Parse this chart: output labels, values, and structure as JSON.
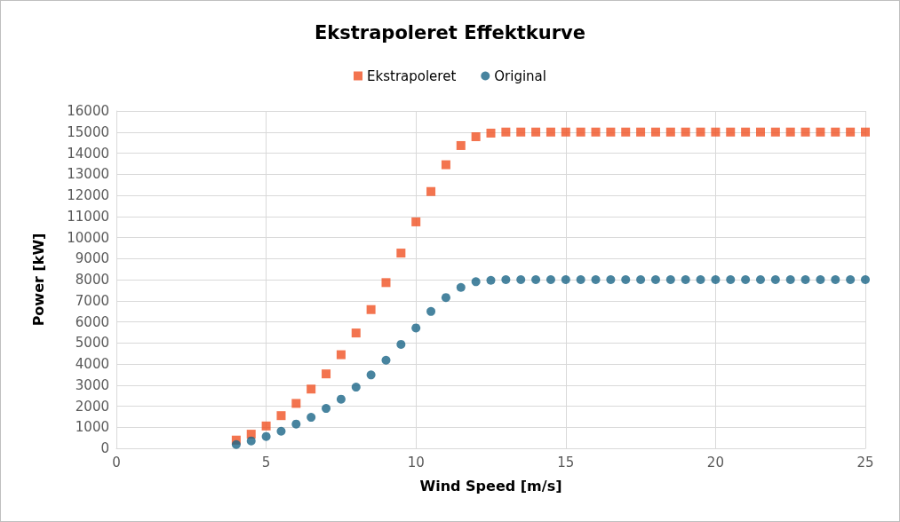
{
  "chart_data": {
    "type": "scatter",
    "title": "Ekstrapoleret Effektkurve",
    "xlabel": "Wind Speed [m/s]",
    "ylabel": "Power [kW]",
    "x": [
      4,
      4.5,
      5,
      5.5,
      6,
      6.5,
      7,
      7.5,
      8,
      8.5,
      9,
      9.5,
      10,
      10.5,
      11,
      11.5,
      12,
      12.5,
      13,
      13.5,
      14,
      14.5,
      15,
      15.5,
      16,
      16.5,
      17,
      17.5,
      18,
      18.5,
      19,
      19.5,
      20,
      20.5,
      21,
      21.5,
      22,
      22.5,
      23,
      23.5,
      24,
      24.5,
      25
    ],
    "series": [
      {
        "name": "Ekstrapoleret",
        "color": "#f05123",
        "marker": "square",
        "values": [
          390,
          670,
          1060,
          1550,
          2130,
          2810,
          3530,
          4440,
          5470,
          6580,
          7860,
          9260,
          10740,
          12180,
          13450,
          14360,
          14780,
          14950,
          15000,
          15000,
          15000,
          15000,
          15000,
          15000,
          15000,
          15000,
          15000,
          15000,
          15000,
          15000,
          15000,
          15000,
          15000,
          15000,
          15000,
          15000,
          15000,
          15000,
          15000,
          15000,
          15000,
          15000,
          15000
        ]
      },
      {
        "name": "Original",
        "color": "#1a6587",
        "marker": "circle",
        "values": [
          180,
          350,
          560,
          810,
          1150,
          1470,
          1890,
          2330,
          2900,
          3480,
          4180,
          4930,
          5710,
          6490,
          7150,
          7630,
          7900,
          7970,
          8000,
          8000,
          8000,
          8000,
          8000,
          8000,
          8000,
          8000,
          8000,
          8000,
          8000,
          8000,
          8000,
          8000,
          8000,
          8000,
          8000,
          8000,
          8000,
          8000,
          8000,
          8000,
          8000,
          8000,
          8000
        ]
      }
    ],
    "xlim": [
      0,
      25
    ],
    "xticks": [
      0,
      5,
      10,
      15,
      20,
      25
    ],
    "ylim": [
      0,
      16000
    ],
    "yticks": [
      0,
      1000,
      2000,
      3000,
      4000,
      5000,
      6000,
      7000,
      8000,
      9000,
      10000,
      11000,
      12000,
      13000,
      14000,
      15000,
      16000
    ],
    "grid": true,
    "legend": "top"
  }
}
